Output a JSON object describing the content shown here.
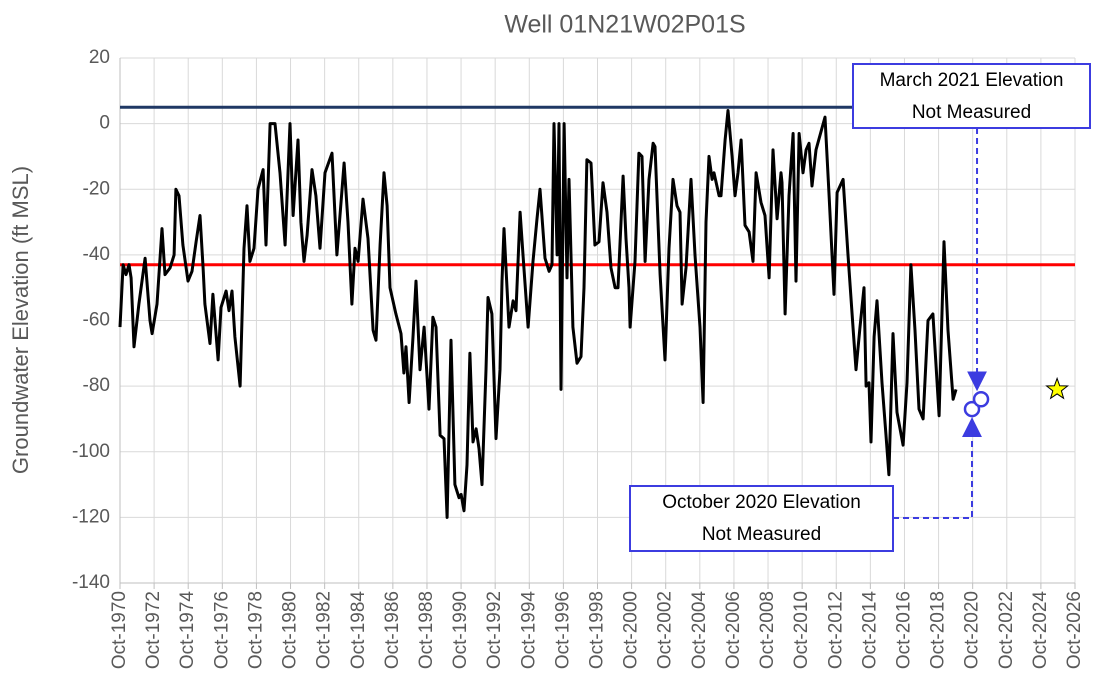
{
  "chart_data": {
    "type": "line",
    "title": "Well 01N21W02P01S",
    "ylabel": "Groundwater Elevation (ft MSL)",
    "color": "#000000",
    "x": [
      1970.75,
      1970.93,
      1971.1,
      1971.28,
      1971.4,
      1971.57,
      1971.86,
      1972.22,
      1972.51,
      1972.63,
      1972.92,
      1973.21,
      1973.39,
      1973.68,
      1973.92,
      1974.03,
      1974.21,
      1974.44,
      1974.74,
      1974.97,
      1975.21,
      1975.44,
      1975.62,
      1975.73,
      1976.03,
      1976.2,
      1976.5,
      1976.67,
      1976.97,
      1977.14,
      1977.32,
      1977.49,
      1977.79,
      1978.02,
      1978.2,
      1978.37,
      1978.61,
      1978.84,
      1979.14,
      1979.31,
      1979.55,
      1979.84,
      1980.13,
      1980.43,
      1980.72,
      1980.9,
      1981.19,
      1981.36,
      1981.54,
      1981.72,
      1982.01,
      1982.24,
      1982.48,
      1982.77,
      1983.18,
      1983.47,
      1983.89,
      1984.12,
      1984.35,
      1984.53,
      1984.71,
      1985.0,
      1985.29,
      1985.59,
      1985.76,
      1986.0,
      1986.23,
      1986.41,
      1986.58,
      1986.93,
      1987.23,
      1987.4,
      1987.52,
      1987.7,
      1987.93,
      1988.11,
      1988.34,
      1988.58,
      1988.87,
      1989.1,
      1989.28,
      1989.52,
      1989.75,
      1989.93,
      1990.16,
      1990.39,
      1990.63,
      1990.75,
      1990.92,
      1991.1,
      1991.27,
      1991.45,
      1991.63,
      1991.8,
      1991.98,
      1992.21,
      1992.33,
      1992.56,
      1992.8,
      1993.03,
      1993.15,
      1993.27,
      1993.56,
      1993.8,
      1993.97,
      1994.21,
      1994.38,
      1994.68,
      1994.97,
      1995.2,
      1995.38,
      1995.67,
      1995.91,
      1996.08,
      1996.2,
      1996.38,
      1996.49,
      1996.61,
      1996.79,
      1996.96,
      1997.08,
      1997.31,
      1997.55,
      1997.78,
      1997.96,
      1998.13,
      1998.37,
      1998.6,
      1998.84,
      1999.07,
      1999.31,
      1999.54,
      1999.78,
      1999.95,
      2000.25,
      2000.42,
      2000.6,
      2000.66,
      2000.95,
      2001.18,
      2001.36,
      2001.54,
      2001.77,
      2002.01,
      2002.12,
      2002.42,
      2002.71,
      2002.94,
      2003.18,
      2003.41,
      2003.59,
      2003.71,
      2003.94,
      2004.23,
      2004.47,
      2004.76,
      2004.94,
      2005.11,
      2005.29,
      2005.47,
      2005.58,
      2005.88,
      2005.99,
      2006.23,
      2006.4,
      2006.64,
      2006.81,
      2006.99,
      2007.17,
      2007.4,
      2007.64,
      2007.87,
      2008.05,
      2008.34,
      2008.57,
      2008.81,
      2009.04,
      2009.28,
      2009.51,
      2009.57,
      2009.75,
      2009.98,
      2010.22,
      2010.39,
      2010.57,
      2010.8,
      2010.98,
      2011.15,
      2011.33,
      2011.56,
      2012.09,
      2012.33,
      2012.62,
      2012.8,
      2013.15,
      2013.44,
      2013.73,
      2013.91,
      2014.14,
      2014.38,
      2014.5,
      2014.67,
      2014.79,
      2014.97,
      2015.14,
      2015.43,
      2015.67,
      2015.84,
      2016.08,
      2016.31,
      2016.67,
      2016.9,
      2017.13,
      2017.37,
      2017.6,
      2017.84,
      2018.13,
      2018.42,
      2018.78,
      2019.07,
      2019.3,
      2019.6,
      2019.77
    ],
    "values": [
      -62,
      -43,
      -46,
      -43,
      -47,
      -68,
      -55,
      -41,
      -60,
      -64,
      -55,
      -32,
      -46,
      -44,
      -40,
      -20,
      -22,
      -37,
      -48,
      -45,
      -36,
      -28,
      -44,
      -55,
      -67,
      -52,
      -72,
      -56,
      -51,
      -57,
      -51,
      -65,
      -80,
      -38,
      -25,
      -42,
      -38,
      -20,
      -14,
      -37,
      0,
      0,
      -15,
      -37,
      0,
      -28,
      -5,
      -30,
      -42,
      -34,
      -14,
      -22,
      -38,
      -15,
      -9,
      -40,
      -12,
      -30,
      -55,
      -38,
      -42,
      -23,
      -35,
      -63,
      -66,
      -37,
      -15,
      -25,
      -50,
      -58,
      -64,
      -76,
      -68,
      -85,
      -65,
      -48,
      -75,
      -62,
      -87,
      -59,
      -62,
      -95,
      -96,
      -120,
      -66,
      -110,
      -114,
      -113,
      -118,
      -104,
      -70,
      -97,
      -93,
      -99,
      -110,
      -75,
      -53,
      -58,
      -96,
      -75,
      -48,
      -32,
      -62,
      -54,
      -57,
      -27,
      -40,
      -62,
      -42,
      -29,
      -20,
      -41,
      -45,
      -43,
      0,
      -40,
      0,
      -81,
      0,
      -47,
      -17,
      -62,
      -73,
      -71,
      -50,
      -11,
      -12,
      -37,
      -36,
      -18,
      -27,
      -44,
      -50,
      -50,
      -16,
      -35,
      -50,
      -62,
      -42,
      -9,
      -10,
      -42,
      -17,
      -6,
      -7,
      -46,
      -72,
      -38,
      -17,
      -25,
      -27,
      -55,
      -44,
      -17,
      -40,
      -62,
      -85,
      -30,
      -10,
      -17,
      -15,
      -22,
      -22,
      -5,
      4,
      -10,
      -22,
      -15,
      -5,
      -31,
      -33,
      -42,
      -15,
      -24,
      -28,
      -47,
      -8,
      -29,
      -15,
      -18,
      -58,
      -22,
      -3,
      -48,
      -3,
      -15,
      -8,
      -6,
      -19,
      -8,
      2,
      -22,
      -52,
      -21,
      -17,
      -40,
      -62,
      -75,
      -62,
      -50,
      -80,
      -79,
      -97,
      -65,
      -54,
      -79,
      -95,
      -107,
      -64,
      -88,
      -98,
      -79,
      -43,
      -63,
      -87,
      -90,
      -60,
      -58,
      -89,
      -36,
      -63,
      -84,
      -81
    ],
    "xlim": [
      1970.75,
      2026.75
    ],
    "xticks": [
      {
        "value": 1970.75,
        "label": "Oct-1970"
      },
      {
        "value": 1972.75,
        "label": "Oct-1972"
      },
      {
        "value": 1974.75,
        "label": "Oct-1974"
      },
      {
        "value": 1976.75,
        "label": "Oct-1976"
      },
      {
        "value": 1978.75,
        "label": "Oct-1978"
      },
      {
        "value": 1980.75,
        "label": "Oct-1980"
      },
      {
        "value": 1982.75,
        "label": "Oct-1982"
      },
      {
        "value": 1984.75,
        "label": "Oct-1984"
      },
      {
        "value": 1986.75,
        "label": "Oct-1986"
      },
      {
        "value": 1988.75,
        "label": "Oct-1988"
      },
      {
        "value": 1990.75,
        "label": "Oct-1990"
      },
      {
        "value": 1992.75,
        "label": "Oct-1992"
      },
      {
        "value": 1994.75,
        "label": "Oct-1994"
      },
      {
        "value": 1996.75,
        "label": "Oct-1996"
      },
      {
        "value": 1998.75,
        "label": "Oct-1998"
      },
      {
        "value": 2000.75,
        "label": "Oct-2000"
      },
      {
        "value": 2002.75,
        "label": "Oct-2002"
      },
      {
        "value": 2004.75,
        "label": "Oct-2004"
      },
      {
        "value": 2006.75,
        "label": "Oct-2006"
      },
      {
        "value": 2008.75,
        "label": "Oct-2008"
      },
      {
        "value": 2010.75,
        "label": "Oct-2010"
      },
      {
        "value": 2012.75,
        "label": "Oct-2012"
      },
      {
        "value": 2014.75,
        "label": "Oct-2014"
      },
      {
        "value": 2016.75,
        "label": "Oct-2016"
      },
      {
        "value": 2018.75,
        "label": "Oct-2018"
      },
      {
        "value": 2020.75,
        "label": "Oct-2020"
      },
      {
        "value": 2022.75,
        "label": "Oct-2022"
      },
      {
        "value": 2024.75,
        "label": "Oct-2024"
      },
      {
        "value": 2026.75,
        "label": "Oct-2026"
      }
    ],
    "ylim": [
      -140,
      20
    ],
    "yticks": [
      -140,
      -120,
      -100,
      -80,
      -60,
      -40,
      -20,
      0,
      20
    ],
    "grid": true,
    "hlines": [
      {
        "value": 5,
        "color": "#1f3864"
      },
      {
        "value": -43,
        "color": "#ff0000"
      }
    ],
    "markers": [
      {
        "x": 2020.71,
        "value": -87
      },
      {
        "x": 2021.24,
        "value": -84
      }
    ],
    "marker_color": "#3c3ce0",
    "star": {
      "x": 2025.7,
      "value": -81,
      "color": "#ffff00"
    },
    "annotations": [
      {
        "lines": [
          "March 2021 Elevation",
          "Not Measured"
        ]
      },
      {
        "lines": [
          "October 2020 Elevation",
          "Not Measured"
        ]
      }
    ]
  }
}
